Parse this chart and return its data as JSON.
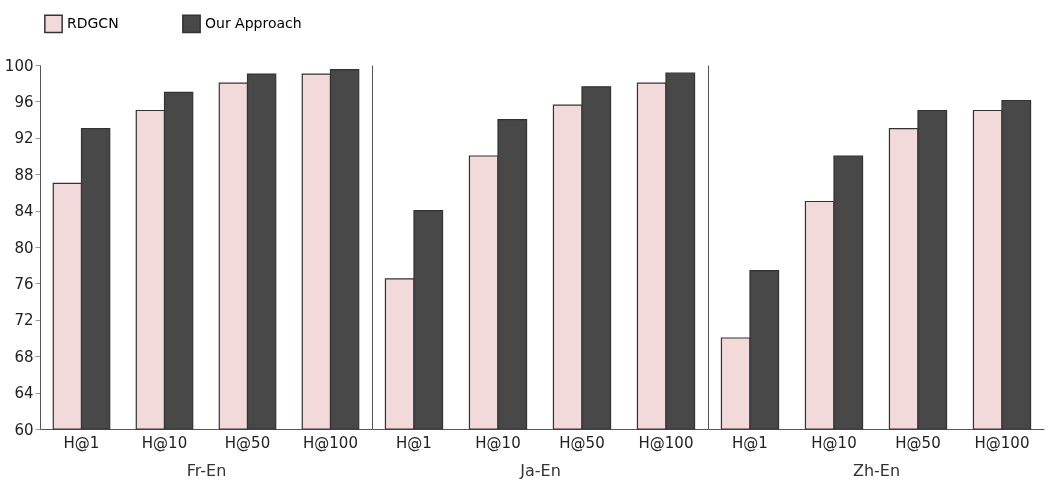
{
  "chart_data": [
    {
      "type": "bar",
      "xlabel": "Fr-En",
      "categories": [
        "H@1",
        "H@10",
        "H@50",
        "H@100"
      ],
      "ylim": [
        60,
        100
      ],
      "yticks": [
        60,
        64,
        68,
        72,
        76,
        80,
        84,
        88,
        92,
        96,
        100
      ],
      "legend": "top",
      "series": [
        {
          "name": "RDGCN",
          "color": "#f2dadb",
          "values": [
            87,
            95,
            98,
            99
          ]
        },
        {
          "name": "Our Approach",
          "color": "#484848",
          "values": [
            93,
            97,
            99,
            99.5
          ]
        }
      ]
    },
    {
      "type": "bar",
      "xlabel": "Ja-En",
      "categories": [
        "H@1",
        "H@10",
        "H@50",
        "H@100"
      ],
      "ylim": [
        60,
        100
      ],
      "tick_labels": "x",
      "legend": "top",
      "series": [
        {
          "name": "RDGCN",
          "color": "#f2dadb",
          "values": [
            76.5,
            90,
            95.6,
            98
          ]
        },
        {
          "name": "Our Approach",
          "color": "#484848",
          "values": [
            84,
            94,
            97.6,
            99.1
          ]
        }
      ]
    },
    {
      "type": "bar",
      "xlabel": "Zh-En",
      "categories": [
        "H@1",
        "H@10",
        "H@50",
        "H@100"
      ],
      "ylim": [
        60,
        100
      ],
      "tick_labels": "x",
      "legend": "top",
      "series": [
        {
          "name": "RDGCN",
          "color": "#f2dadb",
          "values": [
            70,
            85,
            93,
            95
          ]
        },
        {
          "name": "Our Approach",
          "color": "#484848",
          "values": [
            77.4,
            90,
            95,
            96.1
          ]
        }
      ]
    }
  ]
}
